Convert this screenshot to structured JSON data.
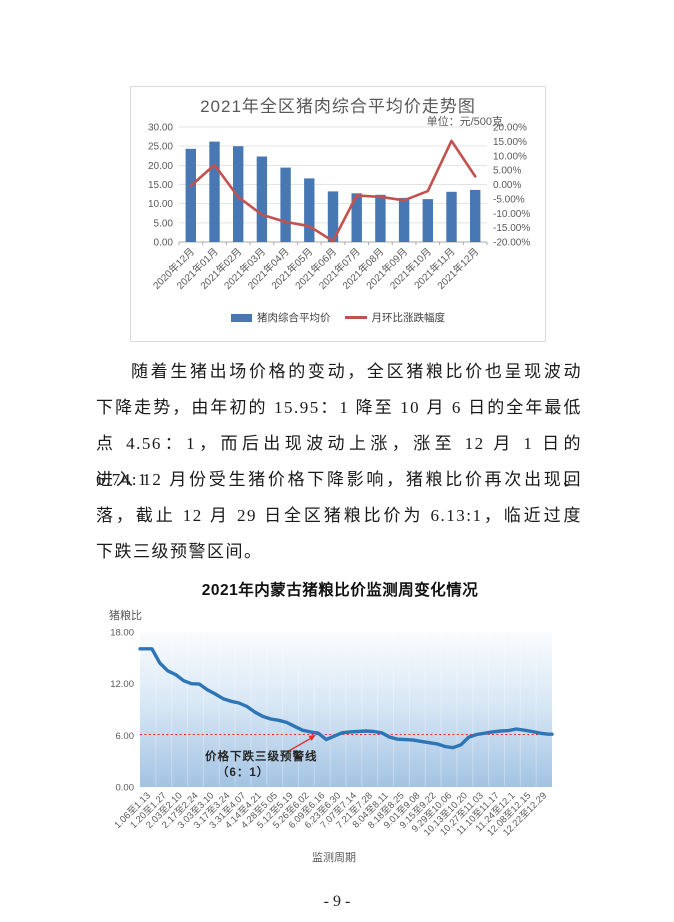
{
  "page": {
    "number": "- 9 -"
  },
  "paragraph": {
    "lines": [
      "随着生猪出场价格的变动，全区猪粮比价也呈现波动",
      "下降走势，由年初的 15.95：1 降至 10 月 6 日的全年最低",
      "点 4.56：1，而后出现波动上涨，涨至 12 月 1 日的 6.74:1。",
      "进入 12 月份受生猪价格下降影响，猪粮比价再次出现回",
      "落，截止 12 月 29 日全区猪粮比价为 6.13:1，临近过度",
      "下跌三级预警区间。"
    ]
  },
  "chart_data": [
    {
      "type": "bar+line",
      "title": "2021年全区猪肉综合平均价走势图",
      "unit_label": "单位：元/500克",
      "categories": [
        "2020年12月",
        "2021年01月",
        "2021年02月",
        "2021年03月",
        "2021年04月",
        "2021年05月",
        "2021年06月",
        "2021年07月",
        "2021年08月",
        "2021年09月",
        "2021年10月",
        "2021年11月",
        "2021年12月"
      ],
      "series": [
        {
          "name": "猪肉综合平均价",
          "type": "bar",
          "axis": "left",
          "color": "#4878B4",
          "values": [
            24.3,
            26.2,
            25.0,
            22.3,
            19.4,
            16.6,
            13.2,
            12.7,
            12.3,
            11.5,
            11.2,
            13.1,
            13.6
          ]
        },
        {
          "name": "月环比涨跌幅度",
          "type": "line",
          "axis": "right",
          "color": "#C3514E",
          "values": [
            -0.5,
            6.8,
            -4.3,
            -10.5,
            -13.0,
            -14.5,
            -19.7,
            -3.8,
            -4.3,
            -5.5,
            -2.3,
            15.2,
            2.8
          ]
        }
      ],
      "left_axis": {
        "min": 0,
        "max": 30,
        "step": 5,
        "ticks": [
          "30.00",
          "25.00",
          "20.00",
          "15.00",
          "10.00",
          "5.00",
          "0.00"
        ]
      },
      "right_axis": {
        "min": -20,
        "max": 20,
        "step": 5,
        "ticks": [
          "20.00%",
          "15.00%",
          "10.00%",
          "5.00%",
          "0.00%",
          "-5.00%",
          "-10.00%",
          "-15.00%",
          "-20.00%"
        ]
      },
      "grid": true,
      "legend_position": "bottom"
    },
    {
      "type": "line",
      "title": "2021年内蒙古猪粮比价监测周变化情况",
      "ylabel": "猪粮比",
      "xlabel": "监测周期",
      "ylim": [
        0,
        18
      ],
      "yticks": [
        "18.00",
        "12.00",
        "6.00",
        "0.00"
      ],
      "categories": [
        "1.06至1.13",
        "1.20至1.27",
        "2.03至2.10",
        "2.17至2.24",
        "3.03至3.10",
        "3.17至3.24",
        "3.31至4.07",
        "4.14至4.21",
        "4.28至5.05",
        "5.12至5.19",
        "5.26至6.02",
        "6.09至6.16",
        "6.23至6.30",
        "7.07至7.14",
        "7.21至7.28",
        "8.04至8.11",
        "8.18至8.25",
        "9.01至9.08",
        "9.15至9.22",
        "9.29至10.06",
        "10.13至10.20",
        "10.27至11.03",
        "11.10至11.17",
        "11.24至12.1",
        "12.08至12.15",
        "12.22至12.29"
      ],
      "points_per_category": 2,
      "values": [
        16.05,
        16.05,
        14.4,
        13.5,
        13.05,
        12.35,
        12.0,
        11.95,
        11.3,
        10.8,
        10.25,
        9.95,
        9.75,
        9.35,
        8.7,
        8.2,
        7.9,
        7.75,
        7.5,
        7.05,
        6.6,
        6.4,
        6.25,
        5.5,
        5.9,
        6.3,
        6.4,
        6.45,
        6.5,
        6.45,
        6.3,
        5.8,
        5.55,
        5.5,
        5.45,
        5.3,
        5.15,
        5.0,
        4.7,
        4.56,
        4.9,
        5.8,
        6.1,
        6.25,
        6.4,
        6.5,
        6.55,
        6.74,
        6.6,
        6.45,
        6.25,
        6.13
      ],
      "line_color": "#2E75B6",
      "plot_gradient": [
        "#FAFCFE",
        "#D9E8F5",
        "#A3C3E3"
      ],
      "warning_line": {
        "value": 6.1,
        "color": "#FF2020",
        "label": "价格下跌三级预警线",
        "sublabel": "（6：1）"
      },
      "grid": false,
      "legend_position": "none"
    }
  ]
}
